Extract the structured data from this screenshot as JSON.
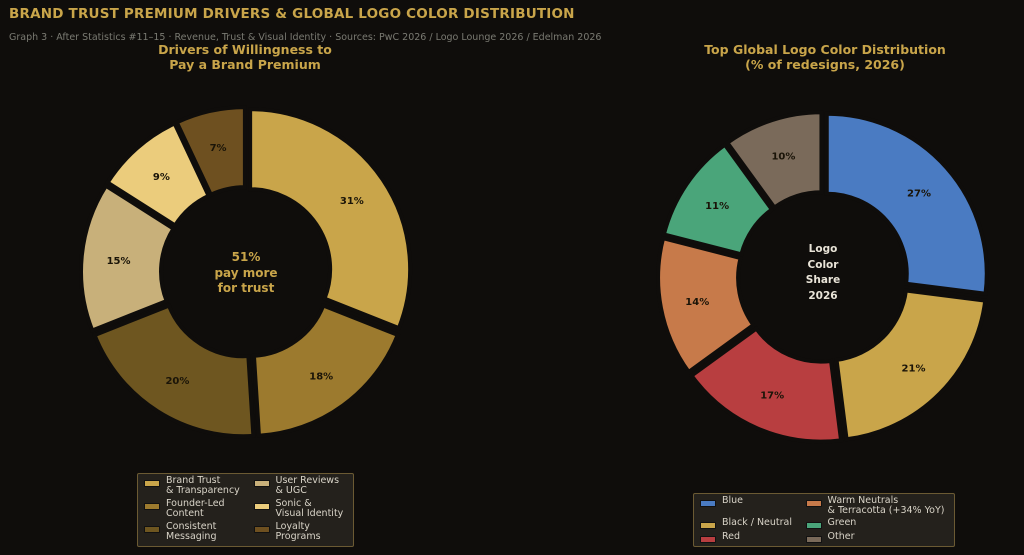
{
  "header": {
    "title": "BRAND TRUST PREMIUM DRIVERS & GLOBAL LOGO COLOR DISTRIBUTION",
    "subtitle": "Graph 3  ·  After Statistics #11–15  ·  Revenue, Trust & Visual Identity  ·  Sources: PwC 2026 / Logo Lounge 2026 / Edelman 2026"
  },
  "chart_data": [
    {
      "type": "pie",
      "title": "Drivers of Willingness to\nPay a Brand Premium",
      "categories": [
        "Brand Trust\n& Transparency",
        "Founder-Led\nContent",
        "Consistent\nMessaging",
        "User Reviews\n& UGC",
        "Sonic &\nVisual Identity",
        "Loyalty\nPrograms"
      ],
      "values": [
        31,
        18,
        20,
        15,
        9,
        7
      ],
      "labels": [
        "31%",
        "18%",
        "20%",
        "15%",
        "9%",
        "7%"
      ],
      "colors": [
        "#c9a54a",
        "#9c7a2e",
        "#6e5620",
        "#c8b07a",
        "#ebcc7c",
        "#6e5020"
      ],
      "center_text": [
        "51%",
        "pay more",
        "for trust"
      ],
      "legend_position": "bottom",
      "legend_order": [
        0,
        1,
        2,
        3,
        4,
        5
      ]
    },
    {
      "type": "pie",
      "title": "Top Global Logo Color Distribution\n(% of redesigns, 2026)",
      "categories": [
        "Blue",
        "Black / Neutral",
        "Red",
        "Warm Neutrals\n& Terracotta (+34% YoY)",
        "Green",
        "Other"
      ],
      "values": [
        27,
        21,
        17,
        14,
        11,
        10
      ],
      "labels": [
        "27%",
        "21%",
        "17%",
        "14%",
        "11%",
        "10%"
      ],
      "colors": [
        "#4a7bc2",
        "#c9a54a",
        "#b83e40",
        "#c77a4a",
        "#4aa57a",
        "#7a6a5a"
      ],
      "center_text": [
        "Logo",
        "Color",
        "Share",
        "2026"
      ],
      "legend_position": "bottom",
      "legend_order": [
        0,
        1,
        2,
        3,
        4,
        5
      ]
    }
  ]
}
